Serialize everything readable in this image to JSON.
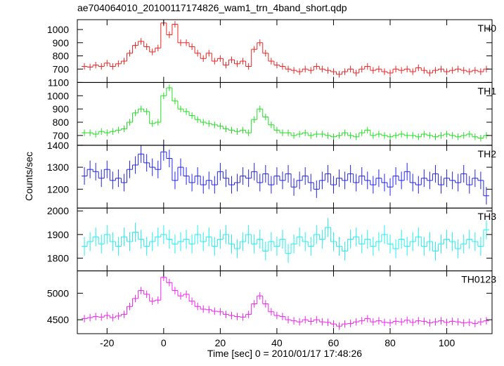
{
  "chart_data": [
    {
      "type": "step",
      "title": "ae704064010_20100117174826_wam1_trn_4band_short.qdp",
      "x": [
        -28,
        -26,
        -24,
        -22,
        -20,
        -18,
        -16,
        -14,
        -12,
        -10,
        -8,
        -6,
        -4,
        -2,
        0,
        2,
        4,
        6,
        8,
        10,
        12,
        14,
        16,
        18,
        20,
        22,
        24,
        26,
        28,
        30,
        32,
        34,
        36,
        38,
        40,
        42,
        44,
        46,
        48,
        50,
        52,
        54,
        56,
        58,
        60,
        62,
        64,
        66,
        68,
        70,
        72,
        74,
        76,
        78,
        80,
        82,
        84,
        86,
        88,
        90,
        92,
        94,
        96,
        98,
        100,
        102,
        104,
        106,
        108,
        110,
        112,
        114
      ],
      "xlim": [
        -30.5,
        116
      ],
      "xticks": [
        -20,
        0,
        20,
        40,
        60,
        80,
        100
      ],
      "ylim": [
        598,
        1075
      ],
      "yticks": [
        700,
        800,
        900,
        1000
      ],
      "series": [
        {
          "name": "TH0",
          "color": "#ee2222",
          "error": 25,
          "values": [
            720,
            715,
            730,
            720,
            745,
            720,
            740,
            760,
            820,
            880,
            910,
            870,
            830,
            860,
            1050,
            960,
            1040,
            900,
            900,
            870,
            820,
            780,
            820,
            760,
            780,
            730,
            770,
            740,
            760,
            720,
            850,
            900,
            820,
            760,
            730,
            720,
            700,
            690,
            680,
            700,
            690,
            720,
            700,
            690,
            680,
            660,
            680,
            700,
            670,
            700,
            720,
            690,
            700,
            680,
            670,
            700,
            690,
            700,
            680,
            710,
            690,
            670,
            690,
            700,
            680,
            690,
            700,
            690,
            680,
            690,
            680,
            700
          ]
        }
      ]
    },
    {
      "type": "step",
      "x": [
        -28,
        -26,
        -24,
        -22,
        -20,
        -18,
        -16,
        -14,
        -12,
        -10,
        -8,
        -6,
        -4,
        -2,
        0,
        2,
        4,
        6,
        8,
        10,
        12,
        14,
        16,
        18,
        20,
        22,
        24,
        26,
        28,
        30,
        32,
        34,
        36,
        38,
        40,
        42,
        44,
        46,
        48,
        50,
        52,
        54,
        56,
        58,
        60,
        62,
        64,
        66,
        68,
        70,
        72,
        74,
        76,
        78,
        80,
        82,
        84,
        86,
        88,
        90,
        92,
        94,
        96,
        98,
        100,
        102,
        104,
        106,
        108,
        110,
        112,
        114
      ],
      "xlim": [
        -30.5,
        116
      ],
      "xticks": [
        -20,
        0,
        20,
        40,
        60,
        80,
        100
      ],
      "ylim": [
        626,
        1100
      ],
      "yticks": [
        700,
        800,
        900,
        1000,
        1100
      ],
      "series": [
        {
          "name": "TH1",
          "color": "#22dd22",
          "error": 25,
          "values": [
            720,
            720,
            710,
            730,
            720,
            730,
            740,
            750,
            800,
            870,
            900,
            880,
            790,
            800,
            1000,
            1060,
            960,
            900,
            880,
            850,
            820,
            800,
            790,
            780,
            770,
            750,
            740,
            730,
            740,
            720,
            820,
            900,
            840,
            780,
            740,
            720,
            720,
            700,
            710,
            720,
            700,
            710,
            710,
            700,
            690,
            700,
            720,
            700,
            690,
            720,
            740,
            700,
            710,
            700,
            690,
            700,
            710,
            700,
            700,
            690,
            710,
            700,
            690,
            700,
            710,
            700,
            690,
            700,
            710,
            690,
            680,
            700
          ]
        }
      ]
    },
    {
      "type": "step",
      "ylabel": "Counts/sec",
      "x": [
        -28,
        -26,
        -24,
        -22,
        -20,
        -18,
        -16,
        -14,
        -12,
        -10,
        -8,
        -6,
        -4,
        -2,
        0,
        2,
        4,
        6,
        8,
        10,
        12,
        14,
        16,
        18,
        20,
        22,
        24,
        26,
        28,
        30,
        32,
        34,
        36,
        38,
        40,
        42,
        44,
        46,
        48,
        50,
        52,
        54,
        56,
        58,
        60,
        62,
        64,
        66,
        68,
        70,
        72,
        74,
        76,
        78,
        80,
        82,
        84,
        86,
        88,
        90,
        92,
        94,
        96,
        98,
        100,
        102,
        104,
        106,
        108,
        110,
        112,
        114
      ],
      "xlim": [
        -30.5,
        116
      ],
      "xticks": [
        -20,
        0,
        20,
        40,
        60,
        80,
        100
      ],
      "ylim": [
        1114,
        1400
      ],
      "yticks": [
        1200,
        1300,
        1400
      ],
      "series": [
        {
          "name": "TH2",
          "color": "#2222ee",
          "error": 40,
          "values": [
            1260,
            1290,
            1280,
            1250,
            1290,
            1240,
            1250,
            1230,
            1290,
            1310,
            1360,
            1320,
            1300,
            1290,
            1370,
            1340,
            1240,
            1300,
            1260,
            1230,
            1260,
            1220,
            1240,
            1220,
            1280,
            1250,
            1220,
            1230,
            1260,
            1250,
            1280,
            1230,
            1270,
            1220,
            1260,
            1240,
            1270,
            1210,
            1240,
            1260,
            1230,
            1200,
            1240,
            1270,
            1220,
            1250,
            1240,
            1270,
            1230,
            1260,
            1240,
            1220,
            1250,
            1230,
            1210,
            1260,
            1240,
            1280,
            1230,
            1220,
            1250,
            1240,
            1270,
            1220,
            1250,
            1240,
            1230,
            1270,
            1220,
            1250,
            1240,
            1170
          ]
        }
      ]
    },
    {
      "type": "step",
      "x": [
        -28,
        -26,
        -24,
        -22,
        -20,
        -18,
        -16,
        -14,
        -12,
        -10,
        -8,
        -6,
        -4,
        -2,
        0,
        2,
        4,
        6,
        8,
        10,
        12,
        14,
        16,
        18,
        20,
        22,
        24,
        26,
        28,
        30,
        32,
        34,
        36,
        38,
        40,
        42,
        44,
        46,
        48,
        50,
        52,
        54,
        56,
        58,
        60,
        62,
        64,
        66,
        68,
        70,
        72,
        74,
        76,
        78,
        80,
        82,
        84,
        86,
        88,
        90,
        92,
        94,
        96,
        98,
        100,
        102,
        104,
        106,
        108,
        110,
        112,
        114
      ],
      "xlim": [
        -30.5,
        116
      ],
      "xticks": [
        -20,
        0,
        20,
        40,
        60,
        80,
        100
      ],
      "ylim": [
        1746,
        2012
      ],
      "yticks": [
        1800,
        1900,
        2000
      ],
      "series": [
        {
          "name": "TH3",
          "color": "#22eeee",
          "error": 40,
          "values": [
            1850,
            1870,
            1890,
            1860,
            1900,
            1870,
            1850,
            1890,
            1870,
            1910,
            1880,
            1850,
            1870,
            1890,
            1900,
            1880,
            1860,
            1870,
            1880,
            1860,
            1900,
            1870,
            1890,
            1850,
            1880,
            1900,
            1860,
            1840,
            1870,
            1900,
            1860,
            1880,
            1830,
            1870,
            1850,
            1880,
            1820,
            1860,
            1890,
            1870,
            1850,
            1900,
            1880,
            1930,
            1870,
            1850,
            1830,
            1880,
            1890,
            1860,
            1880,
            1850,
            1870,
            1900,
            1860,
            1840,
            1880,
            1850,
            1870,
            1890,
            1850,
            1870,
            1830,
            1860,
            1880,
            1870,
            1840,
            1860,
            1880,
            1870,
            1850,
            1920
          ]
        }
      ]
    },
    {
      "type": "step",
      "xlabel": "Time [sec] 0 = 2010/01/17 17:48:26",
      "x": [
        -28,
        -26,
        -24,
        -22,
        -20,
        -18,
        -16,
        -14,
        -12,
        -10,
        -8,
        -6,
        -4,
        -2,
        0,
        2,
        4,
        6,
        8,
        10,
        12,
        14,
        16,
        18,
        20,
        22,
        24,
        26,
        28,
        30,
        32,
        34,
        36,
        38,
        40,
        42,
        44,
        46,
        48,
        50,
        52,
        54,
        56,
        58,
        60,
        62,
        64,
        66,
        68,
        70,
        72,
        74,
        76,
        78,
        80,
        82,
        84,
        86,
        88,
        90,
        92,
        94,
        96,
        98,
        100,
        102,
        104,
        106,
        108,
        110,
        112,
        114
      ],
      "xlim": [
        -30.5,
        116
      ],
      "xticks": [
        -20,
        0,
        20,
        40,
        60,
        80,
        100
      ],
      "ylim": [
        4237,
        5421
      ],
      "yticks": [
        4500,
        5000
      ],
      "series": [
        {
          "name": "TH0123",
          "color": "#ee22ee",
          "error": 70,
          "values": [
            4520,
            4540,
            4560,
            4550,
            4580,
            4540,
            4570,
            4600,
            4750,
            4900,
            5050,
            4980,
            4850,
            4870,
            5300,
            5200,
            5050,
            4950,
            4980,
            4850,
            4750,
            4700,
            4690,
            4660,
            4650,
            4600,
            4580,
            4560,
            4550,
            4600,
            4800,
            4950,
            4800,
            4650,
            4580,
            4560,
            4500,
            4480,
            4460,
            4500,
            4470,
            4500,
            4460,
            4450,
            4420,
            4380,
            4420,
            4430,
            4460,
            4480,
            4520,
            4460,
            4480,
            4450,
            4440,
            4470,
            4460,
            4490,
            4450,
            4480,
            4470,
            4440,
            4460,
            4480,
            4450,
            4470,
            4460,
            4440,
            4450,
            4430,
            4460,
            4480
          ]
        }
      ]
    }
  ]
}
